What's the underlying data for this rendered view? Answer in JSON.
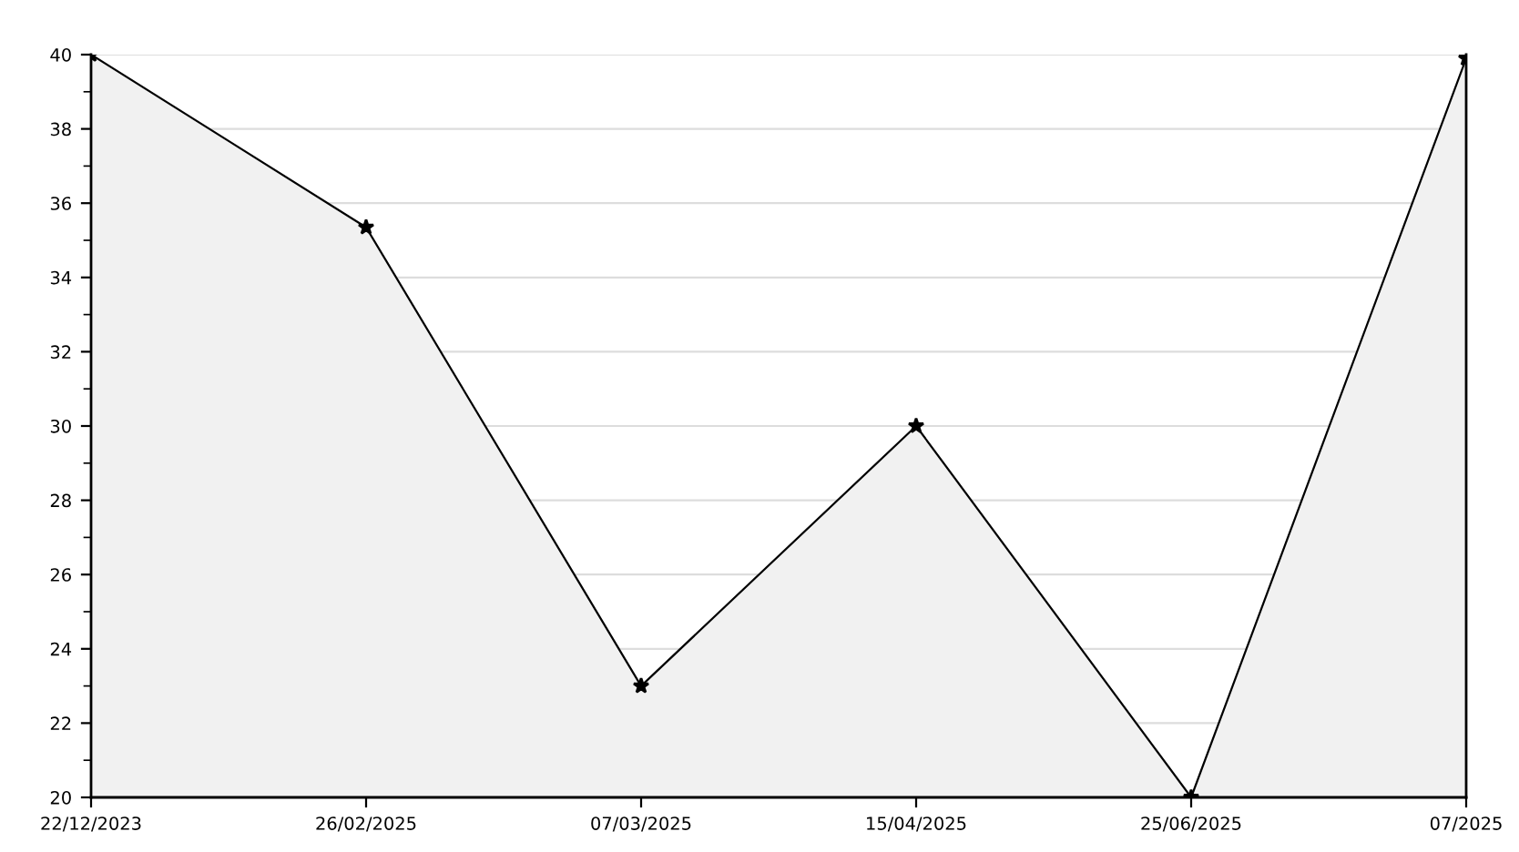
{
  "chart_data": {
    "type": "area",
    "categories": [
      "22/12/2023",
      "26/02/2025",
      "07/03/2025",
      "15/04/2025",
      "25/06/2025",
      "07/2025"
    ],
    "series": [
      {
        "color": "#000000",
        "values": [
          40,
          35.35,
          23,
          30,
          20,
          39.9
        ]
      }
    ],
    "ylim": [
      20,
      40
    ],
    "yticks": [
      20,
      22,
      24,
      26,
      28,
      30,
      32,
      34,
      36,
      38,
      40
    ],
    "grid": "y",
    "marker": "star",
    "line_style": "solid",
    "legend": false
  }
}
